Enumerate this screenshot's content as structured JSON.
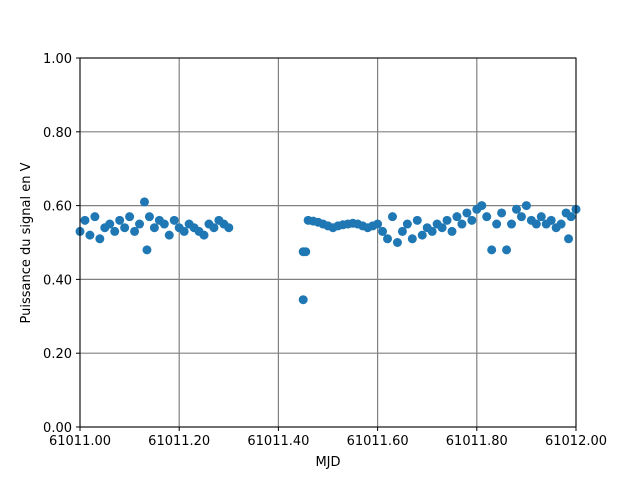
{
  "chart_data": {
    "type": "scatter",
    "xlabel": "MJD",
    "ylabel": "Puissance du signal en V",
    "color": "#1f77b4",
    "grid": true,
    "xlim": [
      61011.0,
      61012.0
    ],
    "xticks": [
      {
        "value": 61011.0,
        "label": "61011.00"
      },
      {
        "value": 61011.2,
        "label": "61011.20"
      },
      {
        "value": 61011.4,
        "label": "61011.40"
      },
      {
        "value": 61011.6,
        "label": "61011.60"
      },
      {
        "value": 61011.8,
        "label": "61011.80"
      },
      {
        "value": 61012.0,
        "label": "61012.00"
      }
    ],
    "ylim": [
      0,
      1
    ],
    "yticks": [
      {
        "value": 0,
        "label": "0.00"
      },
      {
        "value": 0.2,
        "label": "0.20"
      },
      {
        "value": 0.4,
        "label": "0.40"
      },
      {
        "value": 0.6,
        "label": "0.60"
      },
      {
        "value": 0.8,
        "label": "0.80"
      },
      {
        "value": 1,
        "label": "1.00"
      }
    ],
    "x": [
      61011.0,
      61011.01,
      61011.02,
      61011.03,
      61011.04,
      61011.05,
      61011.06,
      61011.07,
      61011.08,
      61011.09,
      61011.1,
      61011.11,
      61011.12,
      61011.13,
      61011.135,
      61011.14,
      61011.15,
      61011.16,
      61011.17,
      61011.18,
      61011.19,
      61011.2,
      61011.21,
      61011.22,
      61011.23,
      61011.24,
      61011.25,
      61011.26,
      61011.27,
      61011.28,
      61011.29,
      61011.3,
      61011.45,
      61011.45,
      61011.455,
      61011.46,
      61011.47,
      61011.48,
      61011.49,
      61011.5,
      61011.51,
      61011.52,
      61011.53,
      61011.54,
      61011.55,
      61011.56,
      61011.57,
      61011.58,
      61011.59,
      61011.6,
      61011.61,
      61011.62,
      61011.63,
      61011.64,
      61011.65,
      61011.66,
      61011.67,
      61011.68,
      61011.69,
      61011.7,
      61011.71,
      61011.72,
      61011.73,
      61011.74,
      61011.75,
      61011.76,
      61011.77,
      61011.78,
      61011.79,
      61011.8,
      61011.81,
      61011.82,
      61011.83,
      61011.84,
      61011.85,
      61011.86,
      61011.87,
      61011.88,
      61011.89,
      61011.9,
      61011.91,
      61011.92,
      61011.93,
      61011.94,
      61011.95,
      61011.96,
      61011.97,
      61011.98,
      61011.985,
      61011.99,
      61012.0
    ],
    "values": [
      0.53,
      0.56,
      0.52,
      0.57,
      0.51,
      0.54,
      0.55,
      0.53,
      0.56,
      0.54,
      0.57,
      0.53,
      0.55,
      0.61,
      0.48,
      0.57,
      0.54,
      0.56,
      0.55,
      0.52,
      0.56,
      0.54,
      0.53,
      0.55,
      0.54,
      0.53,
      0.52,
      0.55,
      0.54,
      0.56,
      0.55,
      0.54,
      0.345,
      0.475,
      0.475,
      0.56,
      0.558,
      0.555,
      0.55,
      0.545,
      0.54,
      0.545,
      0.548,
      0.55,
      0.552,
      0.55,
      0.545,
      0.54,
      0.545,
      0.55,
      0.53,
      0.51,
      0.57,
      0.5,
      0.53,
      0.55,
      0.51,
      0.56,
      0.52,
      0.54,
      0.53,
      0.55,
      0.54,
      0.56,
      0.53,
      0.57,
      0.55,
      0.58,
      0.56,
      0.59,
      0.6,
      0.57,
      0.48,
      0.55,
      0.58,
      0.48,
      0.55,
      0.59,
      0.57,
      0.6,
      0.56,
      0.55,
      0.57,
      0.55,
      0.56,
      0.54,
      0.55,
      0.58,
      0.51,
      0.57,
      0.59
    ]
  }
}
